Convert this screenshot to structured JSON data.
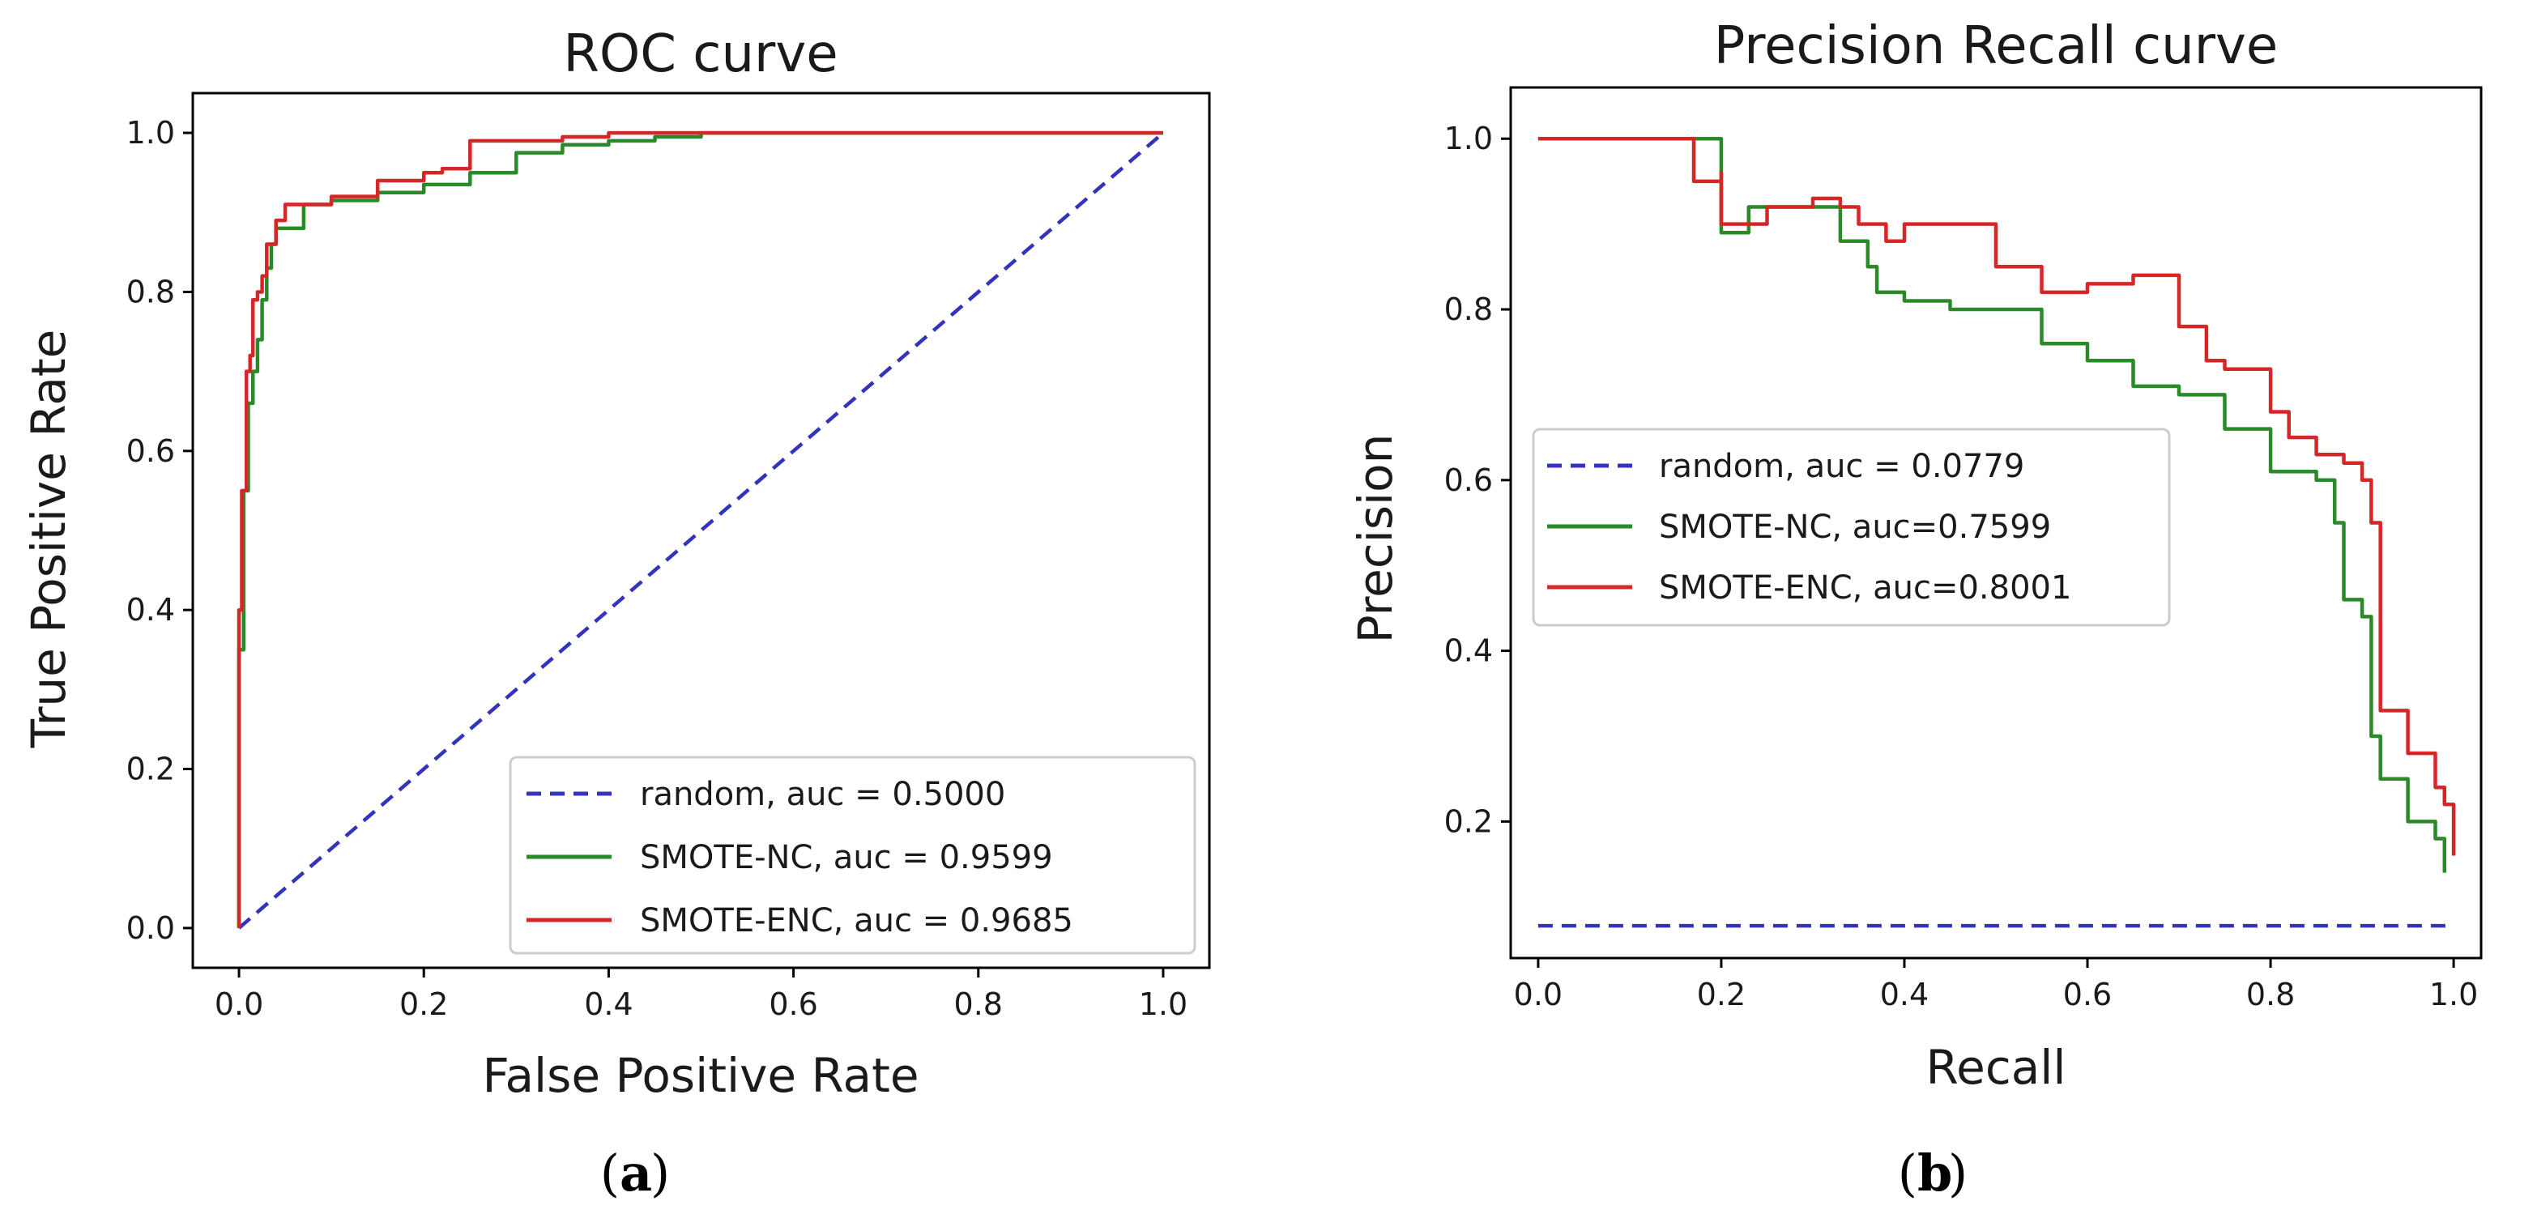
{
  "colors": {
    "random": "#3333bb",
    "nc": "#2a8a2a",
    "enc": "#d62728",
    "axes": "#000000",
    "legend_border": "#cccccc"
  },
  "chart_data": [
    {
      "type": "line",
      "title": "ROC curve",
      "xlabel": "False Positive Rate",
      "ylabel": "True Positive Rate",
      "xlim": [
        -0.05,
        1.05
      ],
      "ylim": [
        -0.05,
        1.05
      ],
      "xticks": [
        0.0,
        0.2,
        0.4,
        0.6,
        0.8,
        1.0
      ],
      "yticks": [
        0.0,
        0.2,
        0.4,
        0.6,
        0.8,
        1.0
      ],
      "xtick_labels": [
        "0.0",
        "0.2",
        "0.4",
        "0.6",
        "0.8",
        "1.0"
      ],
      "ytick_labels": [
        "0.0",
        "0.2",
        "0.4",
        "0.6",
        "0.8",
        "1.0"
      ],
      "caption_letter": "a",
      "legend_loc": "lower-right",
      "series": [
        {
          "name": "random, auc = 0.5000",
          "color_key": "random",
          "dashed": true,
          "x": [
            0,
            1
          ],
          "y": [
            0,
            1
          ]
        },
        {
          "name": "SMOTE-NC, auc = 0.9599",
          "color_key": "nc",
          "dashed": false,
          "x": [
            0,
            0,
            0.005,
            0.005,
            0.01,
            0.01,
            0.015,
            0.02,
            0.025,
            0.03,
            0.035,
            0.04,
            0.05,
            0.07,
            0.1,
            0.15,
            0.2,
            0.25,
            0.3,
            0.35,
            0.4,
            0.45,
            0.5,
            0.52,
            1.0
          ],
          "y": [
            0,
            0.3,
            0.35,
            0.5,
            0.55,
            0.62,
            0.66,
            0.7,
            0.74,
            0.79,
            0.83,
            0.86,
            0.88,
            0.88,
            0.91,
            0.915,
            0.925,
            0.935,
            0.95,
            0.975,
            0.985,
            0.99,
            0.995,
            1.0,
            1.0
          ]
        },
        {
          "name": "SMOTE-ENC, auc = 0.9685",
          "color_key": "enc",
          "dashed": false,
          "x": [
            0,
            0,
            0.003,
            0.003,
            0.008,
            0.008,
            0.012,
            0.015,
            0.02,
            0.025,
            0.03,
            0.04,
            0.05,
            0.06,
            0.1,
            0.15,
            0.2,
            0.22,
            0.25,
            0.27,
            0.3,
            0.35,
            0.4,
            0.44,
            0.5,
            1.0
          ],
          "y": [
            0,
            0.34,
            0.4,
            0.5,
            0.55,
            0.63,
            0.7,
            0.72,
            0.79,
            0.8,
            0.82,
            0.86,
            0.89,
            0.91,
            0.91,
            0.92,
            0.94,
            0.95,
            0.955,
            0.99,
            0.99,
            0.99,
            0.995,
            1.0,
            1.0,
            1.0
          ]
        }
      ]
    },
    {
      "type": "line",
      "title": "Precision Recall curve",
      "xlabel": "Recall",
      "ylabel": "Precision",
      "xlim": [
        -0.03,
        1.03
      ],
      "ylim": [
        0.04,
        1.06
      ],
      "xticks": [
        0.0,
        0.2,
        0.4,
        0.6,
        0.8,
        1.0
      ],
      "yticks": [
        0.2,
        0.4,
        0.6,
        0.8,
        1.0
      ],
      "xtick_labels": [
        "0.0",
        "0.2",
        "0.4",
        "0.6",
        "0.8",
        "1.0"
      ],
      "ytick_labels": [
        "0.2",
        "0.4",
        "0.6",
        "0.8",
        "1.0"
      ],
      "caption_letter": "b",
      "legend_loc": "center-left",
      "series": [
        {
          "name": "random, auc = 0.0779",
          "color_key": "random",
          "dashed": true,
          "x": [
            0,
            1
          ],
          "y": [
            0.0779,
            0.0779
          ]
        },
        {
          "name": "SMOTE-NC, auc=0.7599",
          "color_key": "nc",
          "dashed": false,
          "x": [
            0,
            0.16,
            0.2,
            0.2,
            0.23,
            0.3,
            0.33,
            0.36,
            0.37,
            0.4,
            0.45,
            0.5,
            0.55,
            0.6,
            0.65,
            0.7,
            0.75,
            0.8,
            0.85,
            0.87,
            0.88,
            0.9,
            0.91,
            0.92,
            0.95,
            0.98,
            0.99
          ],
          "y": [
            1.0,
            1.0,
            1.0,
            0.89,
            0.92,
            0.92,
            0.88,
            0.85,
            0.82,
            0.81,
            0.8,
            0.8,
            0.76,
            0.74,
            0.71,
            0.7,
            0.66,
            0.61,
            0.6,
            0.55,
            0.46,
            0.44,
            0.3,
            0.25,
            0.2,
            0.18,
            0.14
          ]
        },
        {
          "name": "SMOTE-ENC, auc=0.8001",
          "color_key": "enc",
          "dashed": false,
          "x": [
            0,
            0.16,
            0.17,
            0.2,
            0.2,
            0.25,
            0.3,
            0.33,
            0.35,
            0.38,
            0.4,
            0.45,
            0.5,
            0.55,
            0.6,
            0.65,
            0.7,
            0.73,
            0.75,
            0.8,
            0.82,
            0.85,
            0.88,
            0.9,
            0.91,
            0.92,
            0.95,
            0.98,
            0.99,
            1.0
          ],
          "y": [
            1.0,
            1.0,
            0.95,
            0.96,
            0.9,
            0.92,
            0.93,
            0.92,
            0.9,
            0.88,
            0.9,
            0.9,
            0.85,
            0.82,
            0.83,
            0.84,
            0.78,
            0.74,
            0.73,
            0.68,
            0.65,
            0.63,
            0.62,
            0.6,
            0.55,
            0.33,
            0.28,
            0.24,
            0.22,
            0.16
          ]
        }
      ]
    }
  ]
}
